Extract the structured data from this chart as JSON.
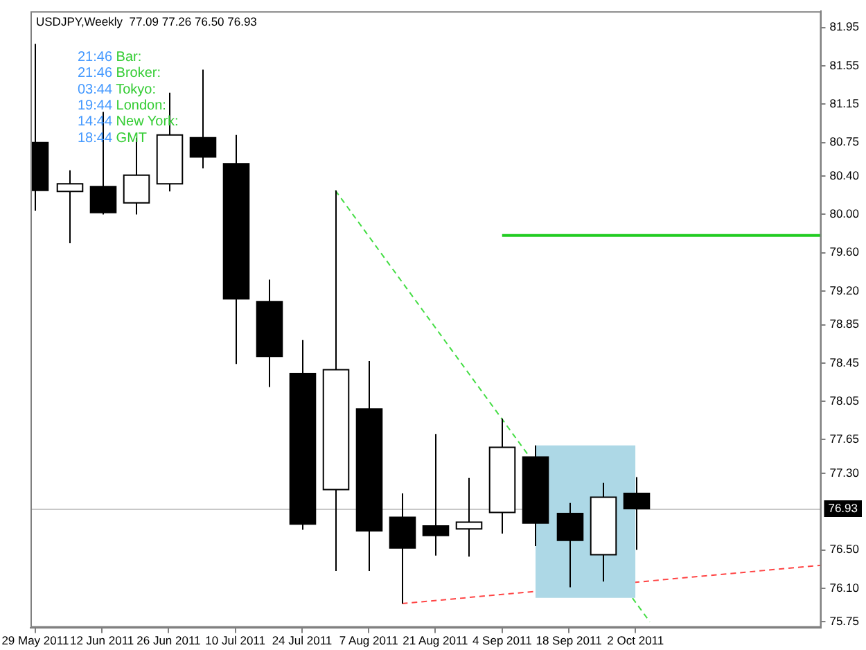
{
  "chart_data": {
    "type": "candlestick",
    "title": "USDJPY,Weekly  77.09 77.26 76.50 76.93",
    "annotations": [
      "21:46 Bar:",
      "21:46 Broker:",
      "03:44 Tokyo:",
      "19:44 London:",
      "14:44 New York:",
      "18:44 GMT"
    ],
    "x": [
      "2011-05-29",
      "2011-06-05",
      "2011-06-12",
      "2011-06-19",
      "2011-06-26",
      "2011-07-03",
      "2011-07-10",
      "2011-07-17",
      "2011-07-24",
      "2011-07-31",
      "2011-08-07",
      "2011-08-14",
      "2011-08-21",
      "2011-08-28",
      "2011-09-04",
      "2011-09-11",
      "2011-09-18",
      "2011-09-25",
      "2011-10-02"
    ],
    "ohlc": [
      [
        80.75,
        81.78,
        80.04,
        80.25
      ],
      [
        80.24,
        80.46,
        79.7,
        80.32
      ],
      [
        80.29,
        81.07,
        80.0,
        80.02
      ],
      [
        80.12,
        80.8,
        80.0,
        80.41
      ],
      [
        80.32,
        81.27,
        80.24,
        80.83
      ],
      [
        80.8,
        81.51,
        80.48,
        80.6
      ],
      [
        80.53,
        80.83,
        78.44,
        79.12
      ],
      [
        79.09,
        79.32,
        78.2,
        78.52
      ],
      [
        78.34,
        78.69,
        76.71,
        76.77
      ],
      [
        77.13,
        80.25,
        76.28,
        78.38
      ],
      [
        77.97,
        78.47,
        76.28,
        76.7
      ],
      [
        76.84,
        77.09,
        75.94,
        76.52
      ],
      [
        76.75,
        77.71,
        76.44,
        76.65
      ],
      [
        76.72,
        77.25,
        76.43,
        76.79
      ],
      [
        76.89,
        77.87,
        76.67,
        77.57
      ],
      [
        77.47,
        77.59,
        76.54,
        76.78
      ],
      [
        76.88,
        76.99,
        76.11,
        76.6
      ],
      [
        76.45,
        77.2,
        76.17,
        77.05
      ],
      [
        77.09,
        77.26,
        76.5,
        76.93
      ]
    ],
    "series": [
      {
        "type": "area",
        "x": [
          "2011-09-11",
          "2011-10-02"
        ],
        "values": [
          null,
          null
        ],
        "lower": [
          76.0,
          76.0
        ],
        "upper": [
          77.59,
          77.59
        ],
        "color": "#add8e6"
      },
      {
        "type": "line",
        "x": [
          "2011-07-31",
          "2011-10-05"
        ],
        "values": [
          80.25,
          75.75
        ],
        "color": "#44dd44",
        "line_style": "dashed"
      },
      {
        "type": "line",
        "x": [
          "2011-08-14",
          "2011-11-10"
        ],
        "values": [
          75.94,
          76.34
        ],
        "color": "#ff4444",
        "line_style": "dashed"
      },
      {
        "type": "line",
        "x": [
          "2011-09-04",
          "2011-11-10"
        ],
        "values": [
          79.78,
          79.78
        ],
        "color": "#22cc22"
      }
    ],
    "xlim": [
      "2011-05-28",
      "2011-11-10"
    ],
    "xticks": [
      {
        "value": "2011-05-29",
        "label": "29 May 2011"
      },
      {
        "value": "2011-06-12",
        "label": "12 Jun 2011"
      },
      {
        "value": "2011-06-26",
        "label": "26 Jun 2011"
      },
      {
        "value": "2011-07-10",
        "label": "10 Jul 2011"
      },
      {
        "value": "2011-07-24",
        "label": "24 Jul 2011"
      },
      {
        "value": "2011-08-07",
        "label": "7 Aug 2011"
      },
      {
        "value": "2011-08-21",
        "label": "21 Aug 2011"
      },
      {
        "value": "2011-09-04",
        "label": "4 Sep 2011"
      },
      {
        "value": "2011-09-18",
        "label": "18 Sep 2011"
      },
      {
        "value": "2011-10-02",
        "label": "2 Oct 2011"
      }
    ],
    "ylim": [
      75.69,
      82.12
    ],
    "yticks": [
      81.95,
      81.55,
      81.15,
      80.75,
      {
        "value": 80.4,
        "label": "80.40"
      },
      {
        "value": 80,
        "label": "80.00"
      },
      {
        "value": 79.6,
        "label": "79.60"
      },
      {
        "value": 79.2,
        "label": "79.20"
      },
      78.85,
      78.45,
      78.05,
      77.65,
      {
        "value": 77.3,
        "label": "77.30"
      },
      {
        "value": 76.5,
        "label": "76.50"
      },
      {
        "value": 76.1,
        "label": "76.10"
      },
      75.75
    ],
    "ref_lines": [
      {
        "axis": "y",
        "value": 76.93,
        "label": "76.93",
        "color": "#c8c8c8"
      }
    ]
  }
}
